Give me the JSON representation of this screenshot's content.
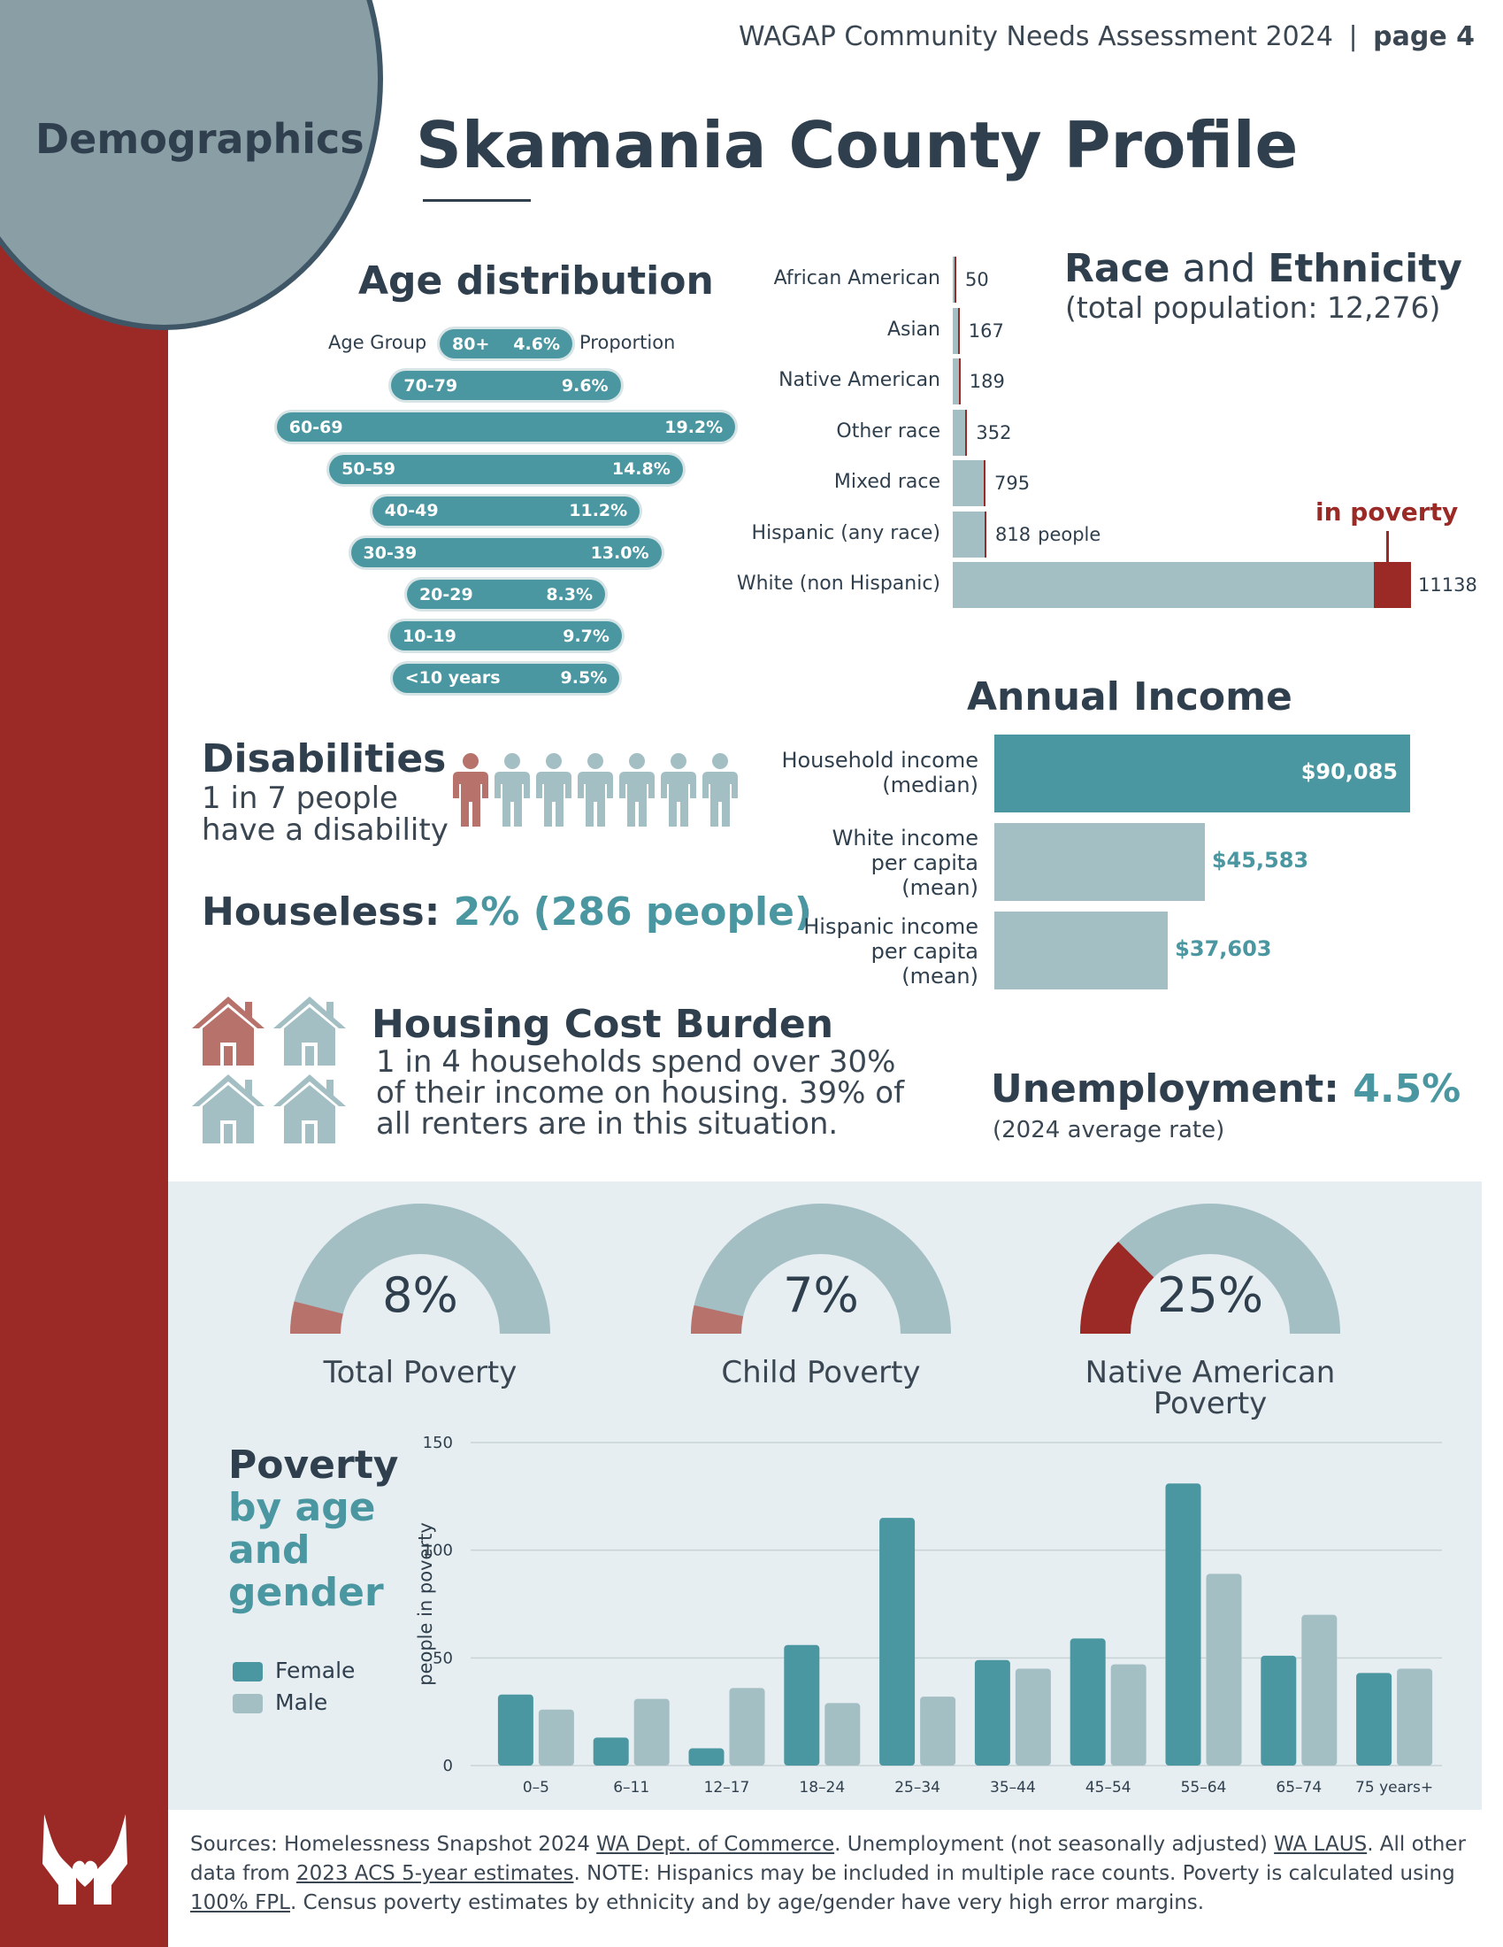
{
  "header": {
    "text": "WAGAP Community Needs Assessment 2024",
    "sep": "|",
    "page": "page 4"
  },
  "section_tag": "Demographics",
  "title": "Skamania County Profile",
  "age": {
    "title": "Age distribution",
    "col_group": "Age Group",
    "col_prop": "Proportion",
    "groups": [
      {
        "label": "80+",
        "pct": "4.6%",
        "value": 4.6
      },
      {
        "label": "70-79",
        "pct": "9.6%",
        "value": 9.6
      },
      {
        "label": "60-69",
        "pct": "19.2%",
        "value": 19.2
      },
      {
        "label": "50-59",
        "pct": "14.8%",
        "value": 14.8
      },
      {
        "label": "40-49",
        "pct": "11.2%",
        "value": 11.2
      },
      {
        "label": "30-39",
        "pct": "13.0%",
        "value": 13.0
      },
      {
        "label": "20-29",
        "pct": "8.3%",
        "value": 8.3
      },
      {
        "label": "10-19",
        "pct": "9.7%",
        "value": 9.7
      },
      {
        "label": "<10 years",
        "pct": "9.5%",
        "value": 9.5
      }
    ]
  },
  "race": {
    "title_a": "Race",
    "title_and": " and ",
    "title_b": "Ethnicity",
    "subtitle": "(total population: 12,276)",
    "unit": "people",
    "poverty_label": "in poverty",
    "rows": [
      {
        "label": "African American",
        "value": 50,
        "display": "50"
      },
      {
        "label": "Asian",
        "value": 167,
        "display": "167"
      },
      {
        "label": "Native American",
        "value": 189,
        "display": "189"
      },
      {
        "label": "Other race",
        "value": 352,
        "display": "352"
      },
      {
        "label": "Mixed race",
        "value": 795,
        "display": "795"
      },
      {
        "label": "Hispanic (any race)",
        "value": 818,
        "display": "818"
      },
      {
        "label": "White (non Hispanic)",
        "value": 11138,
        "display": "11138"
      }
    ]
  },
  "disabilities": {
    "title": "Disabilities",
    "line1": "1 in 7 people",
    "line2": "have a disability"
  },
  "houseless": {
    "label": "Houseless:",
    "value": "2% (286 people)"
  },
  "income": {
    "title": "Annual Income",
    "rows": [
      {
        "label1": "Household income",
        "label2": "(median)",
        "label3": "",
        "value": 90085,
        "display": "$90,085"
      },
      {
        "label1": "White income",
        "label2": "per capita",
        "label3": "(mean)",
        "value": 45583,
        "display": "$45,583"
      },
      {
        "label1": "Hispanic income",
        "label2": "per capita",
        "label3": "(mean)",
        "value": 37603,
        "display": "$37,603"
      }
    ]
  },
  "housing": {
    "title": "Housing Cost Burden",
    "line1": "1 in 4 households spend over 30%",
    "line2": "of their income on housing.  39% of",
    "line3": "all renters are in this situation."
  },
  "unemployment": {
    "label": "Unemployment:",
    "value": "4.5%",
    "note": "(2024 average rate)"
  },
  "gauges": [
    {
      "pct": "8%",
      "value": 8,
      "label1": "Total Poverty",
      "label2": ""
    },
    {
      "pct": "7%",
      "value": 7,
      "label1": "Child Poverty",
      "label2": ""
    },
    {
      "pct": "25%",
      "value": 25,
      "label1": "Native American",
      "label2": "Poverty"
    }
  ],
  "poverty_title": {
    "line1": "Poverty",
    "line2": "by age",
    "line3": "and",
    "line4": "gender"
  },
  "legend": {
    "female": "Female",
    "male": "Male"
  },
  "colors": {
    "teal": "#4b97a1",
    "lightteal": "#a3bfc4",
    "red": "#9b2a26",
    "navy": "#2f3f4d"
  },
  "chart_data": {
    "type": "bar",
    "title": "Poverty by age and gender",
    "xlabel": "",
    "ylabel": "people in poverty",
    "ylim": [
      0,
      150
    ],
    "yticks": [
      "0",
      "50",
      "100",
      "150"
    ],
    "categories": [
      "0–5",
      "6–11",
      "12–17",
      "18–24",
      "25–34",
      "35–44",
      "45–54",
      "55–64",
      "65–74",
      "75 years+"
    ],
    "series": [
      {
        "name": "Female",
        "values": [
          33,
          13,
          8,
          56,
          115,
          49,
          59,
          131,
          51,
          43
        ]
      },
      {
        "name": "Male",
        "values": [
          26,
          31,
          36,
          29,
          32,
          45,
          47,
          89,
          70,
          45
        ]
      }
    ]
  },
  "sources": {
    "p1": "Sources:  Homelessness Snapshot 2024 ",
    "l1": "WA Dept. of Commerce",
    "p2": ". Unemployment (not seasonally adjusted) ",
    "l2": "WA LAUS",
    "p3": ". All other data from ",
    "l3": "2023 ACS 5-year estimates",
    "p4": ".  NOTE: Hispanics may be included in multiple race counts.  Poverty is calculated using ",
    "l4": "100% FPL",
    "p5": ".  Census poverty estimates by ethnicity and by age/gender have very high error margins."
  }
}
